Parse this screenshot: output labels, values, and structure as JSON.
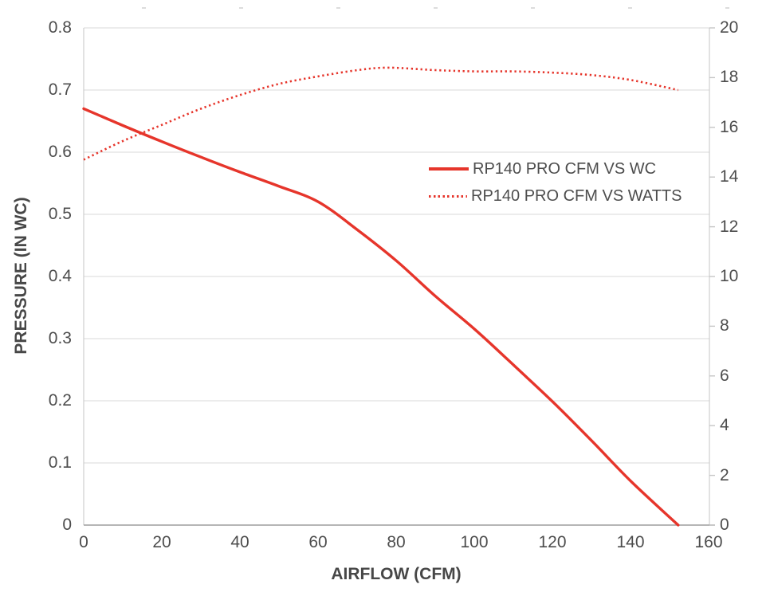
{
  "chart_data": {
    "type": "line",
    "title": "",
    "xlabel": "AIRFLOW (CFM)",
    "ylabel_left": "PRESSURE (IN WC)",
    "ylabel_right": "",
    "xlim": [
      0,
      160
    ],
    "ylim_left": [
      0,
      0.8
    ],
    "ylim_right": [
      0,
      20
    ],
    "grid": true,
    "legend_position": "middle-right",
    "x_tick_labels": [
      "0",
      "20",
      "40",
      "60",
      "80",
      "100",
      "120",
      "140",
      "160"
    ],
    "y_left_tick_labels": [
      "0.8",
      "0.7",
      "0.6",
      "0.5",
      "0.4",
      "0.3",
      "0.2",
      "0.1",
      "0"
    ],
    "y_right_tick_labels": [
      "20",
      "18",
      "16",
      "14",
      "12",
      "10",
      "8",
      "6",
      "4",
      "2",
      "0"
    ],
    "series": [
      {
        "name": "RP140 PRO CFM VS WC",
        "axis": "left",
        "line_style": "solid",
        "color": "#e6352b",
        "points": [
          [
            0,
            0.67
          ],
          [
            10,
            0.643
          ],
          [
            20,
            0.617
          ],
          [
            30,
            0.592
          ],
          [
            40,
            0.568
          ],
          [
            50,
            0.545
          ],
          [
            60,
            0.52
          ],
          [
            70,
            0.475
          ],
          [
            80,
            0.425
          ],
          [
            90,
            0.368
          ],
          [
            100,
            0.315
          ],
          [
            110,
            0.257
          ],
          [
            120,
            0.198
          ],
          [
            130,
            0.135
          ],
          [
            140,
            0.07
          ],
          [
            152,
            0
          ]
        ]
      },
      {
        "name": "RP140 PRO CFM VS WATTS",
        "axis": "right",
        "line_style": "dotted",
        "color": "#e6352b",
        "points": [
          [
            0,
            14.7
          ],
          [
            10,
            15.45
          ],
          [
            20,
            16.1
          ],
          [
            30,
            16.75
          ],
          [
            40,
            17.3
          ],
          [
            50,
            17.75
          ],
          [
            60,
            18.05
          ],
          [
            70,
            18.3
          ],
          [
            78,
            18.4
          ],
          [
            90,
            18.3
          ],
          [
            100,
            18.25
          ],
          [
            110,
            18.25
          ],
          [
            120,
            18.2
          ],
          [
            130,
            18.1
          ],
          [
            140,
            17.9
          ],
          [
            152,
            17.5
          ]
        ]
      }
    ]
  },
  "colors": {
    "series_red": "#e6352b",
    "gridline": "#d9d9d9",
    "axis_line": "#c6c6c6",
    "axis_bottom": "#9e9e9e",
    "tick_text": "#4d4d4d",
    "artifact_mark": "#dcdcdc"
  }
}
